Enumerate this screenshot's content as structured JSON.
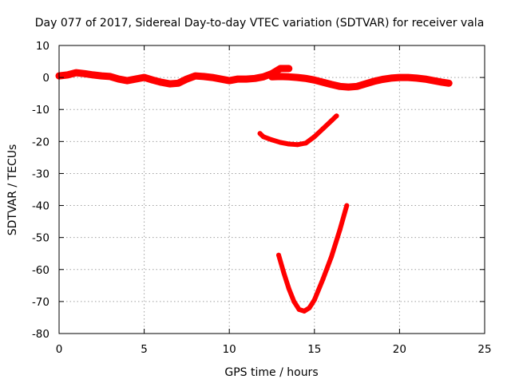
{
  "chart_data": {
    "type": "line",
    "title": "Day 077 of 2017, Sidereal Day-to-day VTEC variation (SDTVAR) for receiver vala",
    "xlabel": "GPS time / hours",
    "ylabel": "SDTVAR / TECUs",
    "xlim": [
      0,
      25
    ],
    "ylim": [
      -80,
      10
    ],
    "xticks": [
      0,
      5,
      10,
      15,
      20,
      25
    ],
    "yticks": [
      10,
      0,
      -10,
      -20,
      -30,
      -40,
      -50,
      -60,
      -70,
      -80
    ],
    "grid": true,
    "legend": "none",
    "series_color": "#ff0000",
    "series": [
      {
        "x": [
          0.0,
          0.5,
          1.0,
          1.5,
          2.0,
          2.5,
          3.0,
          3.5,
          4.0,
          4.5,
          5.0,
          5.5,
          6.0,
          6.5,
          7.0,
          7.5,
          8.0,
          8.5,
          9.0,
          9.5,
          10.0,
          10.5,
          11.0,
          11.5,
          12.0,
          12.5,
          13.0,
          13.5
        ],
        "y": [
          0.5,
          0.8,
          1.5,
          1.2,
          0.8,
          0.5,
          0.3,
          -0.5,
          -1.0,
          -0.5,
          0.0,
          -0.8,
          -1.5,
          -2.0,
          -1.8,
          -0.5,
          0.5,
          0.3,
          0.0,
          -0.5,
          -1.0,
          -0.5,
          -0.5,
          -0.3,
          0.2,
          1.2,
          2.8,
          2.8
        ]
      },
      {
        "x": [
          12.5,
          13.0,
          13.5,
          14.0,
          14.5,
          15.0,
          15.5,
          16.0,
          16.5,
          17.0,
          17.5,
          18.0,
          18.5,
          19.0,
          19.5,
          20.0,
          20.5,
          21.0,
          21.5,
          22.0,
          22.5,
          22.9
        ],
        "y": [
          0.2,
          0.3,
          0.2,
          0.0,
          -0.3,
          -0.8,
          -1.5,
          -2.2,
          -2.8,
          -3.0,
          -2.8,
          -2.0,
          -1.2,
          -0.6,
          -0.2,
          0.0,
          0.0,
          -0.2,
          -0.5,
          -1.0,
          -1.5,
          -1.8
        ]
      },
      {
        "x": [
          11.8,
          12.0,
          12.5,
          13.0,
          13.5,
          14.0,
          14.5,
          15.0,
          15.5,
          16.0,
          16.3
        ],
        "y": [
          -17.5,
          -18.5,
          -19.5,
          -20.3,
          -20.8,
          -21.0,
          -20.5,
          -18.5,
          -16.0,
          -13.5,
          -12.0
        ]
      },
      {
        "x": [
          12.9,
          13.2,
          13.5,
          13.8,
          14.1,
          14.4,
          14.7,
          15.0,
          15.5,
          16.0,
          16.5,
          16.9
        ],
        "y": [
          -55.5,
          -61.0,
          -66.0,
          -70.0,
          -72.5,
          -73.0,
          -72.0,
          -69.5,
          -63.0,
          -56.0,
          -47.5,
          -40.0
        ]
      }
    ]
  }
}
